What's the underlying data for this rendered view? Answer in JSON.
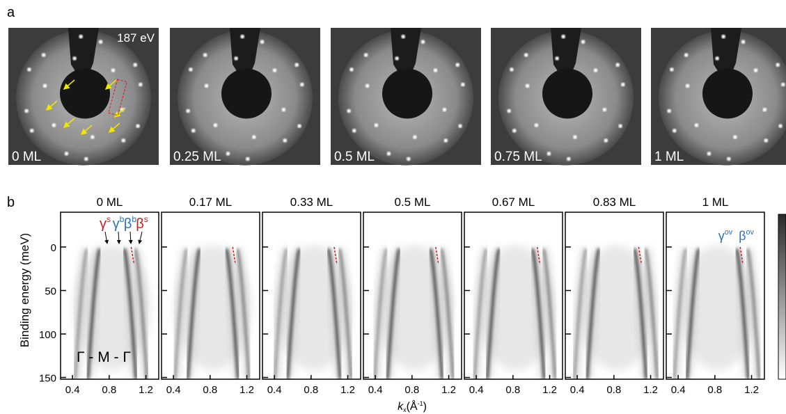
{
  "panel_a": {
    "label": "a",
    "energy": "187 eV",
    "images": [
      {
        "label": "0 ML"
      },
      {
        "label": "0.25 ML"
      },
      {
        "label": "0.5 ML"
      },
      {
        "label": "0.75 ML"
      },
      {
        "label": "1 ML"
      }
    ]
  },
  "panel_b": {
    "label": "b",
    "y_axis_label": "Binding energy (meV)",
    "x_axis_label": {
      "k": "k",
      "sub": "x",
      "unit": "(Å",
      "sup": "-1",
      "close": ")"
    },
    "ylim": [
      -40,
      152
    ],
    "yticks": [
      0,
      50,
      100,
      150
    ],
    "xlim": [
      0.27,
      1.34
    ],
    "xticks": [
      0.4,
      0.8,
      1.2
    ],
    "panels": [
      {
        "title": "0 ML"
      },
      {
        "title": "0.17 ML"
      },
      {
        "title": "0.33 ML"
      },
      {
        "title": "0.5 ML"
      },
      {
        "title": "0.67 ML"
      },
      {
        "title": "0.83 ML"
      },
      {
        "title": "1 ML"
      }
    ],
    "path_label": "Γ - M - Γ",
    "band_labels": [
      {
        "symbol": "γ",
        "sup": "s",
        "color": "#d7191c"
      },
      {
        "symbol": "γ",
        "sup": "b",
        "color": "#2c6fb5"
      },
      {
        "symbol": "β",
        "sup": "b",
        "color": "#2c6fb5"
      },
      {
        "symbol": "β",
        "sup": "s",
        "color": "#d7191c"
      }
    ],
    "overlayer_labels": [
      {
        "symbol": "γ",
        "sup": "ov",
        "color": "#2c6fb5"
      },
      {
        "symbol": "β",
        "sup": "ov",
        "color": "#2c6fb5"
      }
    ]
  }
}
